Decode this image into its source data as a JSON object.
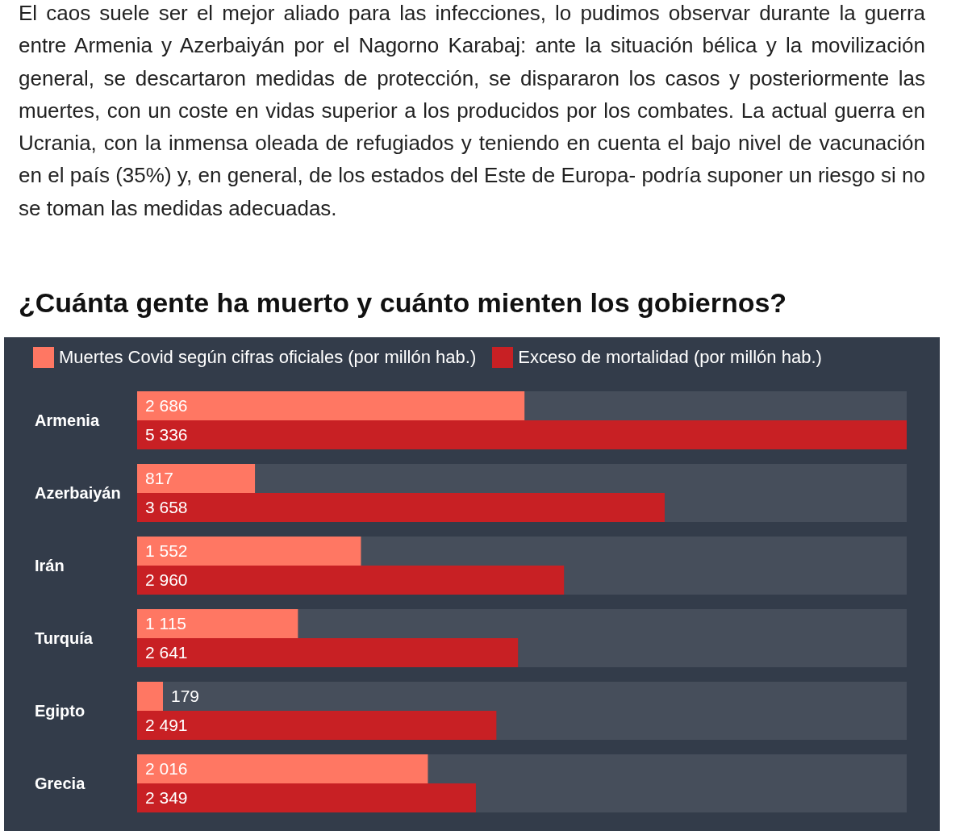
{
  "chart_data": {
    "type": "bar",
    "orientation": "horizontal",
    "title": "¿Cuánta gente ha muerto y cuánto mienten los gobiernos?",
    "annotations": [
      "El caos suele ser el mejor aliado para las infecciones, lo pudimos observar durante la guerra entre Armenia y Azerbaiyán por el Nagorno Karabaj: ante la situación bélica y la movilización general, se descartaron medidas de protección, se dispararon los casos y posteriormente las muertes, con un coste en vidas superior a los producidos por los combates. La actual guerra en Ucrania, con la inmensa oleada de refugiados y teniendo en cuenta el bajo nivel de vacunación en el país (35%) y, en general, de los estados del Este de Europa- podría suponer un riesgo si no se toman las medidas adecuadas."
    ],
    "categories": [
      "Armenia",
      "Azerbaiyán",
      "Irán",
      "Turquía",
      "Egipto",
      "Grecia"
    ],
    "series": [
      {
        "name": "Muertes Covid según cifras oficiales (por millón hab.)",
        "color": "#ff7763",
        "values": [
          2686,
          817,
          1552,
          1115,
          179,
          2016
        ],
        "value_labels": [
          "2 686",
          "817",
          "1 552",
          "1 115",
          "179",
          "2 016"
        ]
      },
      {
        "name": "Exceso de mortalidad (por millón hab.)",
        "color": "#c82024",
        "values": [
          5336,
          3658,
          2960,
          2641,
          2491,
          2349
        ],
        "value_labels": [
          "5 336",
          "3 658",
          "2 960",
          "2 641",
          "2 491",
          "2 349"
        ]
      }
    ],
    "legend": "top left"
  }
}
